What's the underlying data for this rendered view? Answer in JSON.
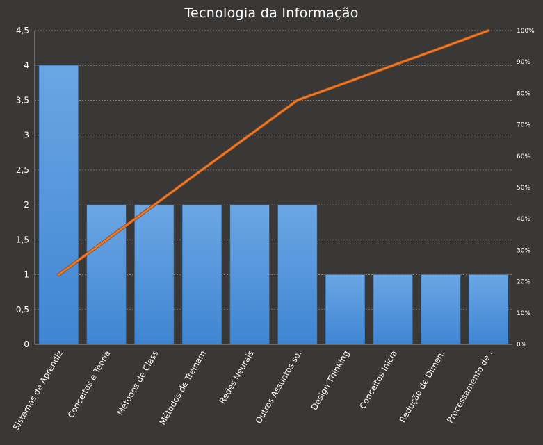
{
  "chart_data": {
    "type": "bar",
    "title": "Tecnologia da Informação",
    "categories": [
      "Sistemas de Aprendiz",
      "Conceitos e Teoria",
      "Métodos de Class",
      "Métodos de Treinam",
      "Redes Neurais",
      "Outros Assuntos so.",
      "Design Thinking",
      "Conceitos Inicia",
      "Redução de Dimen.",
      "Processamento de ."
    ],
    "series": [
      {
        "type": "bar",
        "values": [
          4,
          2,
          2,
          2,
          2,
          2,
          1,
          1,
          1,
          1
        ]
      },
      {
        "type": "line",
        "axis": "secondary",
        "values": [
          22.2,
          33.3,
          44.4,
          55.6,
          66.7,
          77.8,
          83.3,
          88.9,
          94.4,
          100
        ]
      }
    ],
    "ylim": [
      0,
      4.5
    ],
    "yticks": [
      "0",
      "0,5",
      "1",
      "1,5",
      "2",
      "2,5",
      "3",
      "3,5",
      "4",
      "4,5"
    ],
    "y2lim": [
      0,
      100
    ],
    "y2ticks": [
      "0%",
      "10%",
      "20%",
      "30%",
      "40%",
      "50%",
      "60%",
      "70%",
      "80%",
      "90%",
      "100%"
    ],
    "grid": true,
    "legend": "none",
    "colors": {
      "bar": "#4a90d9",
      "bar_light": "#6aa8e6",
      "line": "#e8782a",
      "background": "#3a3836",
      "grid": "#8a8a8a"
    }
  }
}
